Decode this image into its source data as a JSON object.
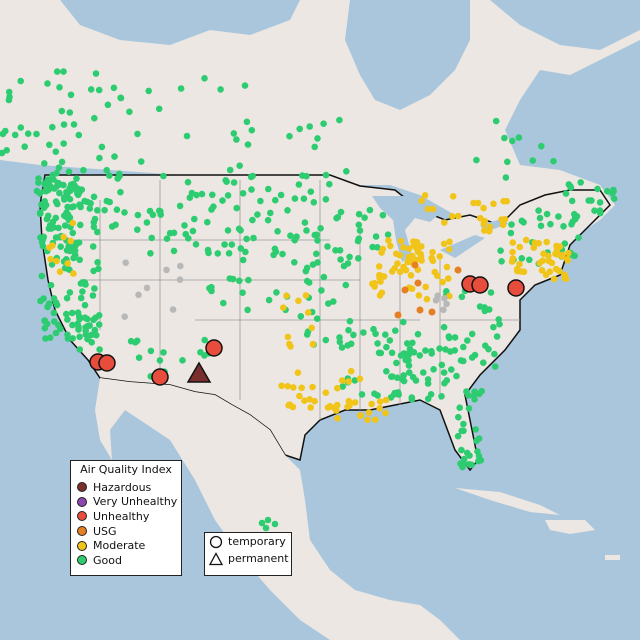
{
  "colors": {
    "ocean": "#a9c6dc",
    "land": "#ece7e2",
    "good": "#2ecc71",
    "moderate": "#f0c419",
    "usg": "#e67e22",
    "unhealthy": "#e74c3c",
    "very_unhealthy": "#8e44ad",
    "hazardous": "#7b2e2e",
    "unknown": "#b8b8b8"
  },
  "legend": {
    "title": "Air Quality Index",
    "items": [
      {
        "label": "Hazardous",
        "color": "#7b2e2e"
      },
      {
        "label": "Very Unhealthy",
        "color": "#8e44ad"
      },
      {
        "label": "Unhealthy",
        "color": "#e74c3c"
      },
      {
        "label": "USG",
        "color": "#e67e22"
      },
      {
        "label": "Moderate",
        "color": "#f0c419"
      },
      {
        "label": "Good",
        "color": "#2ecc71"
      }
    ]
  },
  "shape_legend": {
    "temporary": "temporary",
    "permanent": "permanent"
  }
}
